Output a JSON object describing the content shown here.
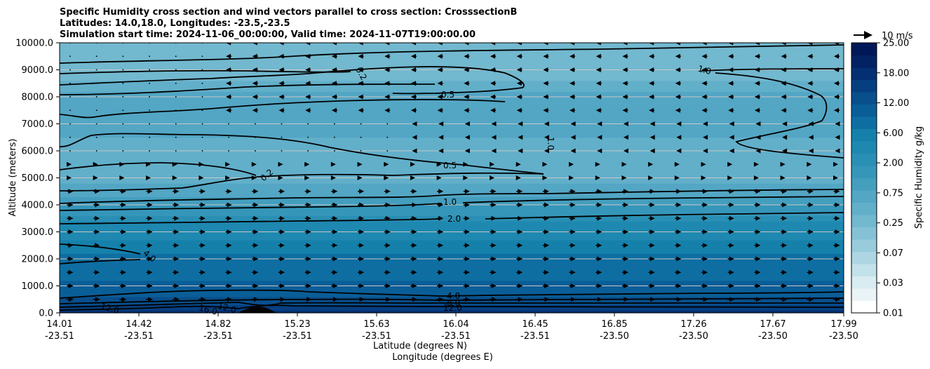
{
  "chart_data": {
    "type": "heatmap",
    "title_lines": [
      "Specific Humidity cross section and wind vectors parallel to cross section: CrosssectionB",
      "Latitudes: 14.0,18.0, Longitudes: -23.5,-23.5",
      "Simulation start time: 2024-11-06_00:00:00, Valid time: 2024-11-07T19:00:00.00"
    ],
    "ylabel": "Altitude (meters)",
    "xlabel_lat": "Latitude (degrees N)",
    "xlabel_lon": "Longitude (degrees E)",
    "ylim": [
      0,
      10000
    ],
    "grid": "horizontal",
    "y_ticks": [
      "0.0",
      "1000.0",
      "2000.0",
      "3000.0",
      "4000.0",
      "5000.0",
      "6000.0",
      "7000.0",
      "8000.0",
      "9000.0",
      "10000.0"
    ],
    "x_ticks": [
      {
        "lat": "14.01",
        "lon": "-23.51"
      },
      {
        "lat": "14.42",
        "lon": "-23.51"
      },
      {
        "lat": "14.82",
        "lon": "-23.51"
      },
      {
        "lat": "15.23",
        "lon": "-23.51"
      },
      {
        "lat": "15.63",
        "lon": "-23.51"
      },
      {
        "lat": "16.04",
        "lon": "-23.51"
      },
      {
        "lat": "16.45",
        "lon": "-23.51"
      },
      {
        "lat": "16.85",
        "lon": "-23.50"
      },
      {
        "lat": "17.26",
        "lon": "-23.50"
      },
      {
        "lat": "17.67",
        "lon": "-23.50"
      },
      {
        "lat": "17.99",
        "lon": "-23.50"
      }
    ],
    "colorbar": {
      "label": "Specific Humidity g/kg",
      "levels": [
        0.01,
        0.02,
        0.03,
        0.05,
        0.07,
        0.1,
        0.15,
        0.25,
        0.35,
        0.5,
        0.75,
        1.0,
        1.5,
        2.0,
        3.0,
        4.0,
        6.0,
        8.0,
        12.0,
        15.0,
        18.0,
        22.0,
        25.0
      ],
      "tick_labels": [
        "0.01",
        "0.03",
        "0.07",
        "0.25",
        "0.75",
        "2.00",
        "6.00",
        "12.00",
        "18.00",
        "25.00"
      ],
      "colors": [
        "#ffffff",
        "#eaf4f7",
        "#d8ecf1",
        "#c3e1ea",
        "#aed6e2",
        "#98cbdb",
        "#85c1d5",
        "#72b8cf",
        "#62afca",
        "#53a6c4",
        "#449ebe",
        "#3596b9",
        "#2a8fb4",
        "#1e88b0",
        "#1581ab",
        "#0e6ea2",
        "#0a5e98",
        "#084f8c",
        "#063f80",
        "#042f72",
        "#022264",
        "#001858"
      ]
    },
    "wind_reference": {
      "label": "10 m/s"
    },
    "contour_labels": [
      "0.2",
      "0.5",
      "1.0",
      "2.0",
      "4.0",
      "8.0",
      "12.0",
      "16.0"
    ],
    "humidity_profile_g_per_kg": [
      {
        "altitude": 0,
        "value": 17.0
      },
      {
        "altitude": 300,
        "value": 12.0
      },
      {
        "altitude": 700,
        "value": 7.0
      },
      {
        "altitude": 2000,
        "value": 4.5
      },
      {
        "altitude": 3300,
        "value": 2.2
      },
      {
        "altitude": 4000,
        "value": 1.0
      },
      {
        "altitude": 5000,
        "value": 0.4
      },
      {
        "altitude": 6500,
        "value": 0.5
      },
      {
        "altitude": 8000,
        "value": 0.6
      },
      {
        "altitude": 9000,
        "value": 0.25
      },
      {
        "altitude": 10000,
        "value": 0.3
      }
    ]
  }
}
